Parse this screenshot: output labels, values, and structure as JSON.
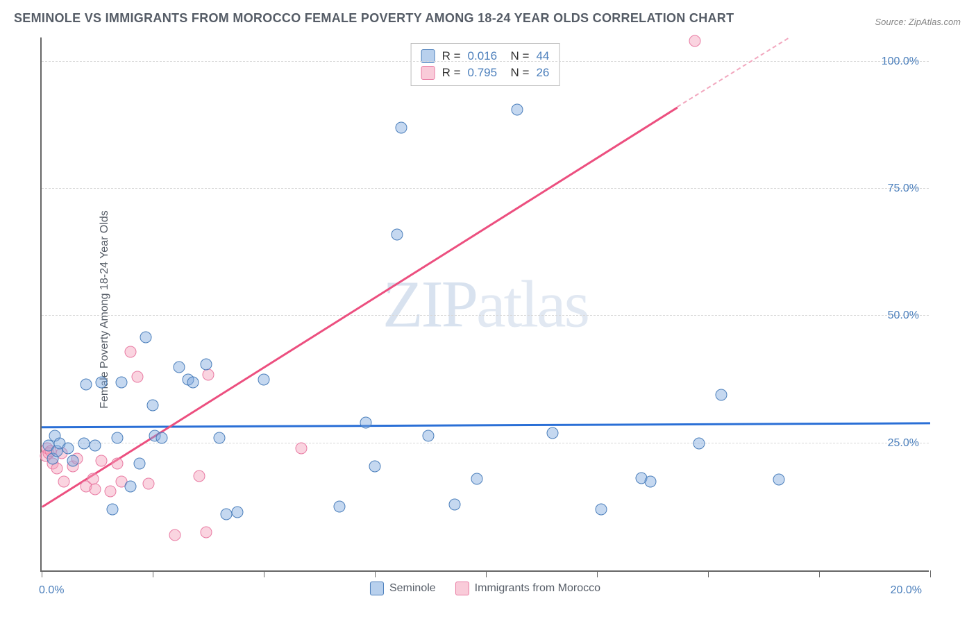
{
  "title": "SEMINOLE VS IMMIGRANTS FROM MOROCCO FEMALE POVERTY AMONG 18-24 YEAR OLDS CORRELATION CHART",
  "source": "Source: ZipAtlas.com",
  "yaxis_label": "Female Poverty Among 18-24 Year Olds",
  "watermark": "ZIPatlas",
  "chart": {
    "type": "scatter",
    "background_color": "#ffffff",
    "grid_color": "#d8d8d8",
    "axis_color": "#666666",
    "label_fontsize": 16,
    "title_fontsize": 18,
    "xlim": [
      0,
      20
    ],
    "ylim": [
      0,
      105
    ],
    "xtick_positions": [
      0,
      2.5,
      5,
      7.5,
      10,
      12.5,
      15,
      17.5,
      20
    ],
    "xtick_labels": {
      "0": "0.0%",
      "20": "20.0%"
    },
    "ytick_positions": [
      25,
      50,
      75,
      100
    ],
    "ytick_labels": [
      "25.0%",
      "50.0%",
      "75.0%",
      "100.0%"
    ],
    "marker_radius": 8.5,
    "series_blue": {
      "name": "Seminole",
      "label_color": "#555c66",
      "fill_color": "rgba(126,169,222,0.45)",
      "stroke_color": "#4a7ebb",
      "trend_color": "#2a6fd6",
      "R": "0.016",
      "N": "44",
      "trend": {
        "x1": 0,
        "y1": 28.2,
        "x2": 20,
        "y2": 29.0
      },
      "points": [
        [
          0.15,
          24.5
        ],
        [
          0.25,
          22.0
        ],
        [
          0.3,
          26.5
        ],
        [
          0.35,
          23.5
        ],
        [
          0.4,
          25.0
        ],
        [
          0.6,
          24.0
        ],
        [
          0.7,
          21.5
        ],
        [
          0.95,
          25.0
        ],
        [
          1.0,
          36.5
        ],
        [
          1.2,
          24.5
        ],
        [
          1.35,
          37.0
        ],
        [
          1.6,
          12.0
        ],
        [
          1.7,
          26.0
        ],
        [
          1.8,
          37.0
        ],
        [
          2.0,
          16.5
        ],
        [
          2.2,
          21.0
        ],
        [
          2.35,
          45.8
        ],
        [
          2.5,
          32.5
        ],
        [
          2.55,
          26.5
        ],
        [
          2.7,
          26.0
        ],
        [
          3.1,
          40.0
        ],
        [
          3.3,
          37.5
        ],
        [
          3.4,
          37.0
        ],
        [
          3.7,
          40.5
        ],
        [
          4.0,
          26.0
        ],
        [
          4.15,
          11.0
        ],
        [
          4.4,
          11.5
        ],
        [
          5.0,
          37.5
        ],
        [
          6.7,
          12.5
        ],
        [
          7.3,
          29.0
        ],
        [
          7.5,
          20.5
        ],
        [
          8.0,
          66.0
        ],
        [
          8.1,
          87.0
        ],
        [
          8.7,
          26.5
        ],
        [
          9.3,
          13.0
        ],
        [
          9.8,
          18.0
        ],
        [
          10.7,
          90.5
        ],
        [
          11.5,
          27.0
        ],
        [
          12.6,
          12.0
        ],
        [
          13.5,
          18.2
        ],
        [
          13.7,
          17.5
        ],
        [
          14.8,
          25.0
        ],
        [
          15.3,
          34.5
        ],
        [
          16.6,
          17.8
        ]
      ]
    },
    "series_pink": {
      "name": "Immigrants from Morocco",
      "label_color": "#555c66",
      "fill_color": "rgba(244,160,186,0.45)",
      "stroke_color": "#e97ba3",
      "trend_color": "#EC4F7F",
      "trend_dash_color": "#f2a7be",
      "R": "0.795",
      "N": "26",
      "trend_solid": {
        "x1": 0,
        "y1": 12.5,
        "x2": 14.3,
        "y2": 91.0
      },
      "trend_dashed": {
        "x1": 14.3,
        "y1": 91.0,
        "x2": 16.8,
        "y2": 104.5
      },
      "points": [
        [
          0.1,
          22.5
        ],
        [
          0.12,
          24.0
        ],
        [
          0.15,
          23.0
        ],
        [
          0.2,
          23.5
        ],
        [
          0.25,
          21.0
        ],
        [
          0.35,
          20.0
        ],
        [
          0.45,
          23.0
        ],
        [
          0.5,
          17.5
        ],
        [
          0.7,
          20.5
        ],
        [
          0.8,
          22.0
        ],
        [
          1.0,
          16.5
        ],
        [
          1.15,
          18.0
        ],
        [
          1.2,
          16.0
        ],
        [
          1.35,
          21.5
        ],
        [
          1.55,
          15.5
        ],
        [
          1.7,
          21.0
        ],
        [
          1.8,
          17.5
        ],
        [
          2.0,
          43.0
        ],
        [
          2.15,
          38.0
        ],
        [
          2.4,
          17.0
        ],
        [
          3.0,
          7.0
        ],
        [
          3.55,
          18.5
        ],
        [
          3.7,
          7.5
        ],
        [
          3.75,
          38.5
        ],
        [
          5.85,
          24.0
        ],
        [
          14.7,
          104.0
        ]
      ]
    },
    "bottom_legend": [
      "Seminole",
      "Immigrants from Morocco"
    ]
  }
}
